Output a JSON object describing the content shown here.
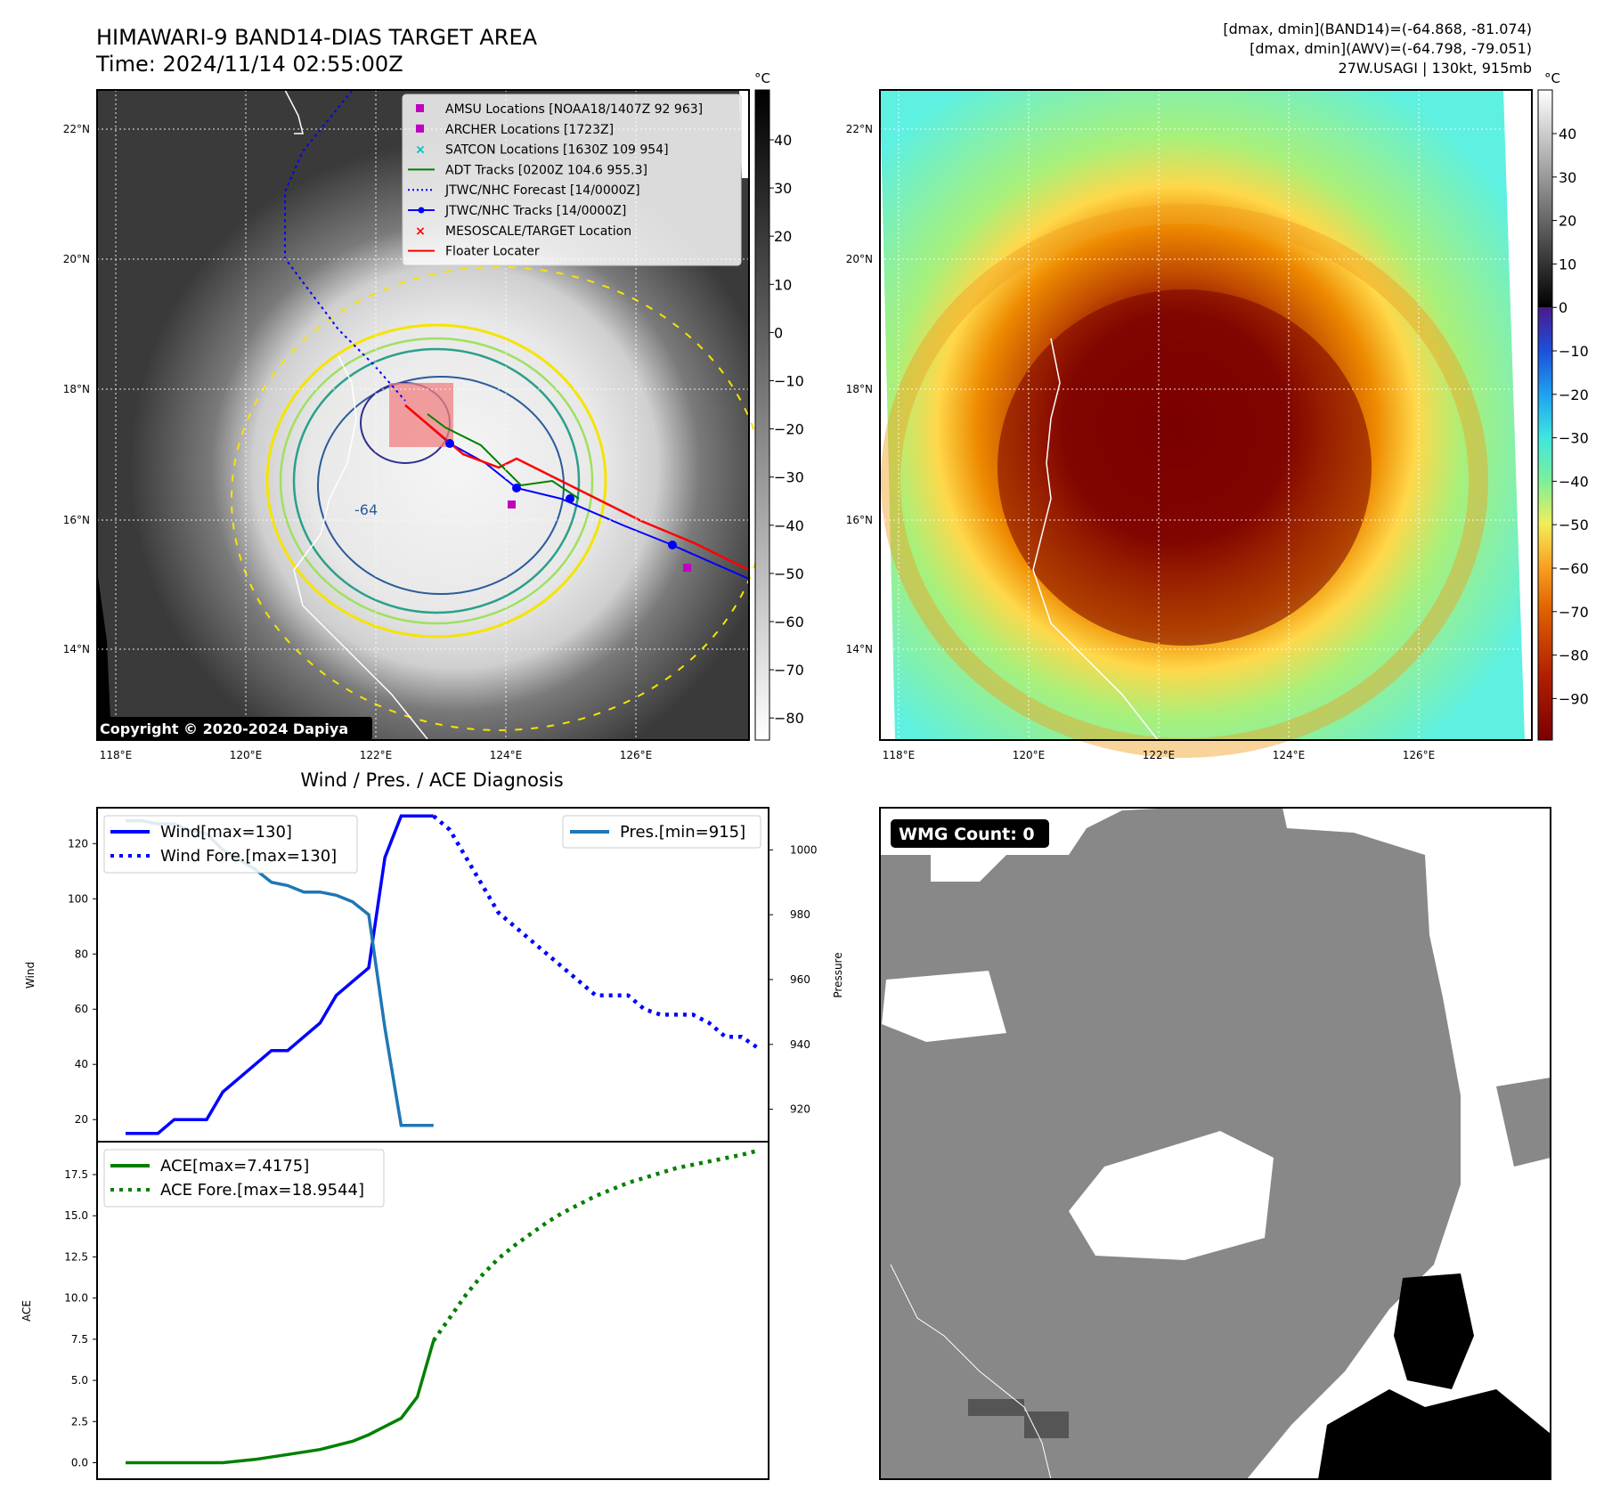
{
  "header": {
    "title": "HIMAWARI-9 BAND14-DIAS TARGET AREA",
    "time": "Time: 2024/11/14 02:55:00Z",
    "info_line1": "[dmax, dmin](BAND14)=(-64.868, -81.074)",
    "info_line2": "[dmax, dmin](AWV)=(-64.798, -79.051)",
    "info_line3": "27W.USAGI | 130kt, 915mb"
  },
  "left_map": {
    "copyright": "Copyright © 2020-2024 Dapiya",
    "lat_labels": [
      "22°N",
      "20°N",
      "18°N",
      "16°N",
      "14°N"
    ],
    "lon_labels": [
      "118°E",
      "120°E",
      "122°E",
      "124°E",
      "126°E"
    ],
    "contour_label": "-64",
    "legend": [
      {
        "label": "AMSU Locations [NOAA18/1407Z 92 963]",
        "color": "#c000c0",
        "marker": "square"
      },
      {
        "label": "ARCHER Locations [1723Z]",
        "color": "#c000c0",
        "marker": "square"
      },
      {
        "label": "SATCON Locations [1630Z 109 954]",
        "color": "#00c0c0",
        "marker": "x"
      },
      {
        "label": "ADT Tracks [0200Z 104.6 955.3]",
        "color": "#008000",
        "marker": "line"
      },
      {
        "label": "JTWC/NHC Forecast [14/0000Z]",
        "color": "#0000ff",
        "marker": "dotted"
      },
      {
        "label": "JTWC/NHC Tracks [14/0000Z]",
        "color": "#0000ff",
        "marker": "line-dot"
      },
      {
        "label": "MESOSCALE/TARGET Location",
        "color": "#ff0000",
        "marker": "x"
      },
      {
        "label": "Floater Locater",
        "color": "#ff0000",
        "marker": "line"
      }
    ],
    "colorbar": {
      "unit": "°C",
      "ticks": [
        "40",
        "30",
        "20",
        "10",
        "0",
        "−10",
        "−20",
        "−30",
        "−40",
        "−50",
        "−60",
        "−70",
        "−80"
      ]
    }
  },
  "right_map": {
    "lat_labels": [
      "22°N",
      "20°N",
      "18°N",
      "16°N",
      "14°N"
    ],
    "lon_labels": [
      "118°E",
      "120°E",
      "122°E",
      "124°E",
      "126°E"
    ],
    "colorbar": {
      "unit": "°C",
      "ticks": [
        "40",
        "30",
        "20",
        "10",
        "0",
        "−10",
        "−20",
        "−30",
        "−40",
        "−50",
        "−60",
        "−70",
        "−80",
        "−90"
      ]
    }
  },
  "wmg_panel": {
    "badge": "WMG Count: 0"
  },
  "chart_data": [
    {
      "type": "line",
      "title": "Wind / Pres. / ACE Diagnosis",
      "ylabel": "Wind",
      "y2label": "Pressure",
      "ylim": [
        12,
        133
      ],
      "y2lim": [
        910,
        1013
      ],
      "yticks": [
        20,
        40,
        60,
        80,
        100,
        120
      ],
      "y2ticks": [
        920,
        940,
        960,
        980,
        1000
      ],
      "series": [
        {
          "name": "Wind[max=130]",
          "color": "#0000ff",
          "style": "solid",
          "axis": "left",
          "x": [
            0,
            1,
            2,
            3,
            4,
            5,
            6,
            7,
            8,
            9,
            10,
            11,
            12,
            13,
            14,
            15,
            16,
            17,
            18,
            19
          ],
          "values": [
            15,
            15,
            15,
            20,
            20,
            20,
            30,
            35,
            40,
            45,
            45,
            50,
            55,
            65,
            70,
            75,
            115,
            130,
            130,
            130
          ]
        },
        {
          "name": "Wind Fore.[max=130]",
          "color": "#0000ff",
          "style": "dotted",
          "axis": "left",
          "x": [
            19,
            20,
            21,
            22,
            23,
            24,
            25,
            26,
            27,
            28,
            29,
            30,
            31,
            32,
            33,
            34,
            35,
            36,
            37,
            38,
            39
          ],
          "values": [
            130,
            125,
            115,
            105,
            95,
            90,
            85,
            80,
            75,
            70,
            65,
            65,
            65,
            60,
            58,
            58,
            58,
            55,
            50,
            50,
            46
          ]
        },
        {
          "name": "Pres.[min=915]",
          "color": "#1f77b4",
          "style": "solid",
          "axis": "right",
          "x": [
            0,
            1,
            2,
            3,
            4,
            5,
            6,
            7,
            8,
            9,
            10,
            11,
            12,
            13,
            14,
            15,
            16,
            17,
            18,
            19
          ],
          "values": [
            1009,
            1009,
            1008,
            1008,
            1006,
            1005,
            1000,
            997,
            994,
            990,
            989,
            987,
            987,
            986,
            984,
            980,
            945,
            915,
            915,
            915
          ]
        }
      ]
    },
    {
      "type": "line",
      "ylabel": "ACE",
      "ylim": [
        -1,
        19.5
      ],
      "yticks": [
        "0.0",
        "2.5",
        "5.0",
        "7.5",
        "10.0",
        "12.5",
        "15.0",
        "17.5"
      ],
      "series": [
        {
          "name": "ACE[max=7.4175]",
          "color": "#008000",
          "style": "solid",
          "x": [
            0,
            2,
            4,
            6,
            8,
            10,
            12,
            14,
            15,
            16,
            17,
            18,
            19
          ],
          "values": [
            0,
            0,
            0,
            0,
            0.2,
            0.5,
            0.8,
            1.3,
            1.7,
            2.2,
            2.7,
            4.0,
            7.4175
          ]
        },
        {
          "name": "ACE Fore.[max=18.9544]",
          "color": "#008000",
          "style": "dotted",
          "x": [
            19,
            20,
            21,
            22,
            23,
            24,
            25,
            26,
            27,
            28,
            29,
            30,
            31,
            32,
            33,
            34,
            35,
            36,
            37,
            38,
            39
          ],
          "values": [
            7.4175,
            8.8,
            10.2,
            11.4,
            12.4,
            13.2,
            13.9,
            14.6,
            15.2,
            15.7,
            16.2,
            16.6,
            17.0,
            17.3,
            17.6,
            17.9,
            18.1,
            18.3,
            18.5,
            18.7,
            18.9544
          ]
        }
      ]
    }
  ]
}
